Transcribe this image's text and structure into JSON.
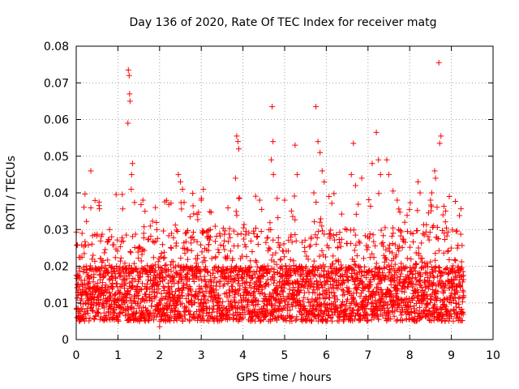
{
  "chart_data": {
    "type": "scatter",
    "title": "Day 136 of 2020, Rate Of TEC Index for receiver matg",
    "xlabel": "GPS time / hours",
    "ylabel": "ROTI / TECUs",
    "xlim": [
      0,
      10
    ],
    "ylim": [
      0,
      0.08
    ],
    "x_ticks": [
      0,
      1,
      2,
      3,
      4,
      5,
      6,
      7,
      8,
      9,
      10
    ],
    "y_ticks": [
      0,
      0.01,
      0.02,
      0.03,
      0.04,
      0.05,
      0.06,
      0.07,
      0.08
    ],
    "x_tick_labels": [
      "0",
      "1",
      "2",
      "3",
      "4",
      "5",
      "6",
      "7",
      "8",
      "9",
      "10"
    ],
    "y_tick_labels": [
      "0",
      "0.01",
      "0.02",
      "0.03",
      "0.04",
      "0.05",
      "0.06",
      "0.07",
      "0.08"
    ],
    "grid": true,
    "marker": "+",
    "color": "#ff0000",
    "data_range_hours": [
      0,
      9.3
    ],
    "bulk_band": [
      0.005,
      0.02
    ],
    "series": [
      {
        "name": "ROTI",
        "highlights": [
          [
            0.35,
            0.046
          ],
          [
            0.55,
            0.0375
          ],
          [
            0.8,
            0.03
          ],
          [
            0.85,
            0.028
          ],
          [
            1.25,
            0.0735
          ],
          [
            1.27,
            0.072
          ],
          [
            1.28,
            0.067
          ],
          [
            1.29,
            0.065
          ],
          [
            1.24,
            0.059
          ],
          [
            1.35,
            0.048
          ],
          [
            1.33,
            0.045
          ],
          [
            1.32,
            0.041
          ],
          [
            1.6,
            0.038
          ],
          [
            1.65,
            0.035
          ],
          [
            1.9,
            0.036
          ],
          [
            2.0,
            0.0035
          ],
          [
            2.45,
            0.045
          ],
          [
            2.5,
            0.043
          ],
          [
            2.55,
            0.041
          ],
          [
            3.0,
            0.038
          ],
          [
            3.05,
            0.041
          ],
          [
            3.85,
            0.0555
          ],
          [
            3.88,
            0.054
          ],
          [
            3.9,
            0.052
          ],
          [
            3.82,
            0.044
          ],
          [
            4.4,
            0.038
          ],
          [
            4.45,
            0.0355
          ],
          [
            4.7,
            0.0635
          ],
          [
            4.72,
            0.054
          ],
          [
            4.68,
            0.049
          ],
          [
            4.73,
            0.045
          ],
          [
            5.0,
            0.038
          ],
          [
            5.25,
            0.053
          ],
          [
            5.3,
            0.045
          ],
          [
            5.75,
            0.0635
          ],
          [
            5.8,
            0.054
          ],
          [
            5.85,
            0.051
          ],
          [
            5.9,
            0.046
          ],
          [
            5.95,
            0.043
          ],
          [
            5.7,
            0.04
          ],
          [
            6.65,
            0.0535
          ],
          [
            6.6,
            0.045
          ],
          [
            6.7,
            0.042
          ],
          [
            6.85,
            0.044
          ],
          [
            7.1,
            0.048
          ],
          [
            7.2,
            0.0565
          ],
          [
            7.25,
            0.049
          ],
          [
            7.3,
            0.045
          ],
          [
            7.45,
            0.049
          ],
          [
            7.5,
            0.045
          ],
          [
            7.6,
            0.0405
          ],
          [
            7.7,
            0.038
          ],
          [
            8.2,
            0.043
          ],
          [
            8.25,
            0.04
          ],
          [
            8.5,
            0.038
          ],
          [
            8.6,
            0.046
          ],
          [
            8.62,
            0.044
          ],
          [
            8.7,
            0.0755
          ],
          [
            8.75,
            0.0555
          ],
          [
            8.72,
            0.0535
          ],
          [
            8.8,
            0.034
          ],
          [
            8.95,
            0.039
          ]
        ]
      }
    ]
  }
}
